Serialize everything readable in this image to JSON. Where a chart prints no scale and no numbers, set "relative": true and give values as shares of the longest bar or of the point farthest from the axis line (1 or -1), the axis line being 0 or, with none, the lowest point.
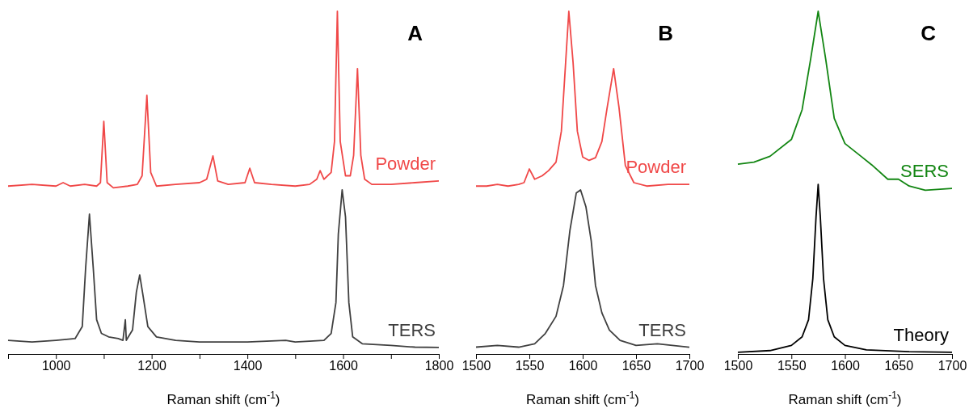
{
  "chart_data": [
    {
      "type": "line",
      "title": "A",
      "xlabel": "Raman shift (cm$^{-1}$)",
      "relative": true,
      "xlim": [
        900,
        1800
      ],
      "xticks": [
        {
          "value": 900,
          "label": null
        },
        1000,
        {
          "value": 1100,
          "label": null
        },
        1200,
        {
          "value": 1300,
          "label": null
        },
        1400,
        {
          "value": 1500,
          "label": null
        },
        1600,
        {
          "value": 1700,
          "label": null
        },
        1800
      ],
      "series": [
        {
          "name": "Powder",
          "color": "#f04848",
          "x": [
            900,
            950,
            1000,
            1015,
            1030,
            1060,
            1085,
            1093,
            1100,
            1107,
            1120,
            1150,
            1170,
            1180,
            1190,
            1198,
            1210,
            1250,
            1300,
            1315,
            1328,
            1338,
            1360,
            1395,
            1405,
            1415,
            1450,
            1500,
            1530,
            1545,
            1552,
            1560,
            1575,
            1582,
            1588,
            1594,
            1605,
            1615,
            1622,
            1630,
            1637,
            1645,
            1660,
            1700,
            1750,
            1800
          ],
          "values": [
            0.49,
            0.495,
            0.49,
            0.5,
            0.49,
            0.495,
            0.49,
            0.5,
            0.679,
            0.5,
            0.485,
            0.49,
            0.495,
            0.52,
            0.755,
            0.53,
            0.49,
            0.495,
            0.5,
            0.51,
            0.578,
            0.505,
            0.495,
            0.5,
            0.542,
            0.5,
            0.495,
            0.49,
            0.495,
            0.51,
            0.535,
            0.51,
            0.53,
            0.62,
            1.0,
            0.62,
            0.52,
            0.52,
            0.58,
            0.833,
            0.58,
            0.51,
            0.495,
            0.495,
            0.5,
            0.505
          ]
        },
        {
          "name": "TERS",
          "color": "#404040",
          "x": [
            900,
            950,
            1000,
            1040,
            1055,
            1062,
            1070,
            1078,
            1085,
            1095,
            1110,
            1130,
            1140,
            1145,
            1147,
            1160,
            1168,
            1175,
            1182,
            1192,
            1210,
            1250,
            1300,
            1400,
            1480,
            1500,
            1560,
            1575,
            1585,
            1590,
            1598,
            1605,
            1612,
            1620,
            1640,
            1700,
            1750,
            1800
          ],
          "values": [
            0.04,
            0.035,
            0.04,
            0.045,
            0.08,
            0.25,
            0.408,
            0.25,
            0.1,
            0.06,
            0.05,
            0.045,
            0.04,
            0.1,
            0.04,
            0.07,
            0.18,
            0.231,
            0.17,
            0.08,
            0.05,
            0.04,
            0.035,
            0.035,
            0.04,
            0.035,
            0.04,
            0.06,
            0.15,
            0.35,
            0.479,
            0.4,
            0.15,
            0.05,
            0.03,
            0.025,
            0.02,
            0.019
          ]
        }
      ]
    },
    {
      "type": "line",
      "title": "B",
      "xlabel": "Raman shift (cm$^{-1}$)",
      "relative": true,
      "xlim": [
        1500,
        1700
      ],
      "xticks": [
        1500,
        1550,
        1600,
        1650,
        1700
      ],
      "series": [
        {
          "name": "Powder",
          "color": "#f04848",
          "x": [
            1500,
            1510,
            1520,
            1530,
            1540,
            1545,
            1550,
            1555,
            1562,
            1568,
            1575,
            1580,
            1584,
            1587,
            1591,
            1595,
            1600,
            1606,
            1612,
            1618,
            1623,
            1629,
            1634,
            1640,
            1648,
            1660,
            1680,
            1700
          ],
          "values": [
            0.49,
            0.49,
            0.495,
            0.49,
            0.495,
            0.5,
            0.54,
            0.51,
            0.52,
            0.535,
            0.56,
            0.65,
            0.85,
            1.0,
            0.85,
            0.65,
            0.575,
            0.565,
            0.573,
            0.62,
            0.72,
            0.833,
            0.72,
            0.55,
            0.5,
            0.49,
            0.495,
            0.495
          ]
        },
        {
          "name": "TERS",
          "color": "#404040",
          "x": [
            1500,
            1520,
            1540,
            1555,
            1565,
            1575,
            1582,
            1588,
            1594,
            1598,
            1603,
            1608,
            1612,
            1618,
            1625,
            1635,
            1650,
            1670,
            1700
          ],
          "values": [
            0.02,
            0.025,
            0.02,
            0.03,
            0.06,
            0.11,
            0.2,
            0.36,
            0.47,
            0.479,
            0.43,
            0.33,
            0.2,
            0.12,
            0.07,
            0.04,
            0.025,
            0.03,
            0.02
          ]
        }
      ]
    },
    {
      "type": "line",
      "title": "C",
      "xlabel": "Raman shift (cm$^{-1}$)",
      "relative": true,
      "xlim": [
        1500,
        1700
      ],
      "xticks": [
        1500,
        1550,
        1600,
        1650,
        1700
      ],
      "series": [
        {
          "name": "SERS",
          "color": "#138613",
          "x": [
            1500,
            1515,
            1530,
            1550,
            1560,
            1568,
            1575,
            1582,
            1590,
            1600,
            1615,
            1625,
            1640,
            1650,
            1660,
            1675,
            1700
          ],
          "values": [
            0.554,
            0.56,
            0.577,
            0.626,
            0.713,
            0.861,
            1.0,
            0.861,
            0.688,
            0.614,
            0.577,
            0.552,
            0.51,
            0.51,
            0.49,
            0.478,
            0.483
          ]
        },
        {
          "name": "Theory",
          "color": "#000000",
          "x": [
            1500,
            1530,
            1550,
            1560,
            1566,
            1570,
            1573,
            1575,
            1577,
            1580,
            1584,
            1590,
            1600,
            1620,
            1660,
            1700
          ],
          "values": [
            0.005,
            0.01,
            0.025,
            0.05,
            0.1,
            0.22,
            0.4,
            0.495,
            0.4,
            0.22,
            0.1,
            0.05,
            0.025,
            0.012,
            0.007,
            0.005
          ]
        }
      ]
    }
  ]
}
